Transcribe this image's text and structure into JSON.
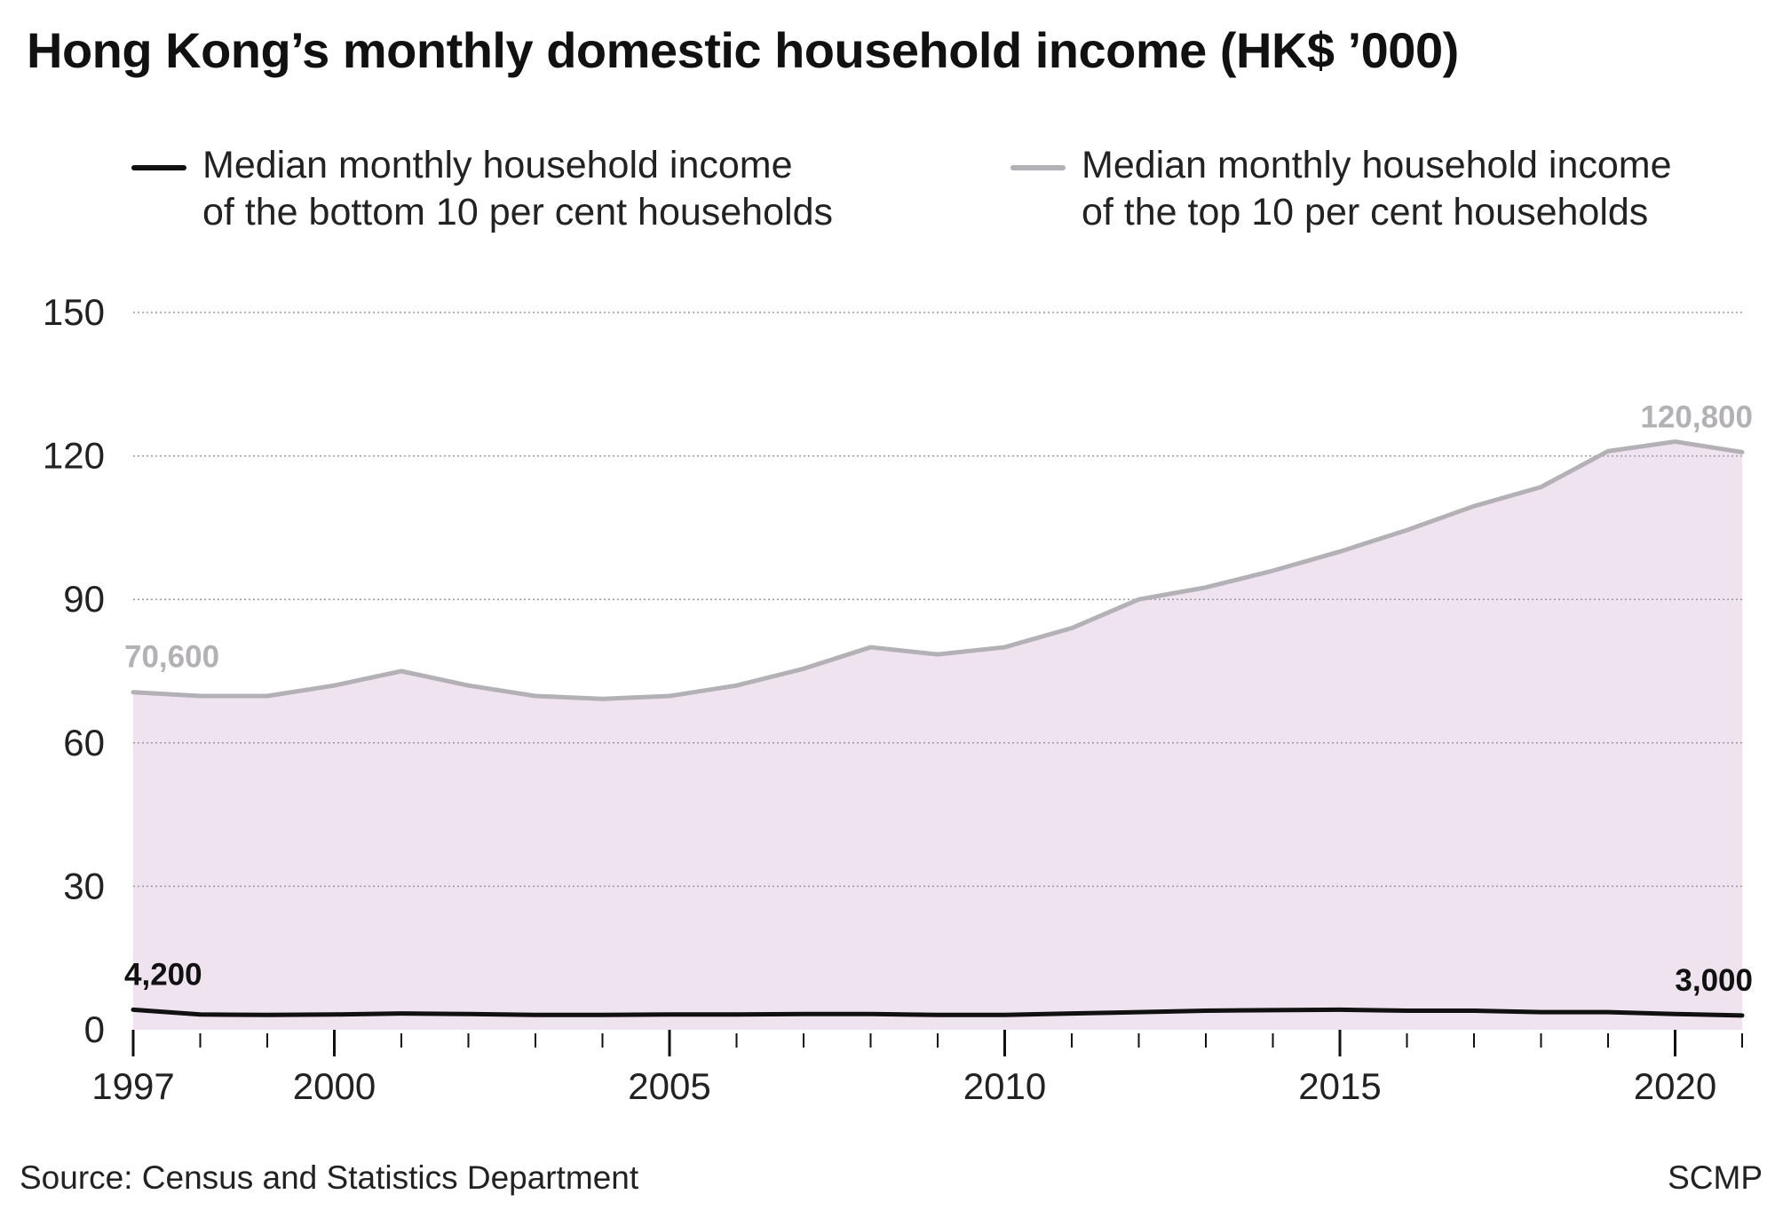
{
  "chart_data": {
    "type": "area",
    "title": "Hong Kong’s monthly domestic household income (HK$ ’000)",
    "x": [
      1997,
      1998,
      1999,
      2000,
      2001,
      2002,
      2003,
      2004,
      2005,
      2006,
      2007,
      2008,
      2009,
      2010,
      2011,
      2012,
      2013,
      2014,
      2015,
      2016,
      2017,
      2018,
      2019,
      2020,
      2021
    ],
    "series": [
      {
        "name": "Median monthly household income of the bottom 10 per cent households",
        "legend_lines": [
          "Median monthly household income",
          "of the bottom 10 per cent households"
        ],
        "color": "#111111",
        "values": [
          4.2,
          3.2,
          3.1,
          3.2,
          3.4,
          3.3,
          3.1,
          3.1,
          3.2,
          3.2,
          3.3,
          3.3,
          3.1,
          3.1,
          3.4,
          3.7,
          4.0,
          4.1,
          4.2,
          4.0,
          4.0,
          3.7,
          3.7,
          3.3,
          3.0
        ]
      },
      {
        "name": "Median monthly household income of the top 10 per cent households",
        "legend_lines": [
          "Median monthly household income",
          "of the top 10 per cent households"
        ],
        "color": "#b3b1b6",
        "values": [
          70.6,
          69.8,
          69.8,
          72,
          75,
          72,
          69.8,
          69.2,
          69.8,
          72,
          75.5,
          80,
          78.5,
          80,
          84,
          90,
          92.5,
          96,
          100,
          104.5,
          109.5,
          113.5,
          121,
          123,
          120.8
        ]
      }
    ],
    "area_fill": "#efe3ef",
    "ylim": [
      0,
      150
    ],
    "yticks": [
      0,
      30,
      60,
      90,
      120,
      150
    ],
    "xticks_labeled": [
      1997,
      2000,
      2005,
      2010,
      2015,
      2020
    ],
    "grid": true,
    "legend_position": "top",
    "annotations": [
      {
        "text": "70,600",
        "x": 1997,
        "series": 1,
        "anchor": "start",
        "color": "#b3b1b6"
      },
      {
        "text": "120,800",
        "x": 2021,
        "series": 1,
        "anchor": "end",
        "color": "#b3b1b6"
      },
      {
        "text": "4,200",
        "x": 1997,
        "series": 0,
        "anchor": "start",
        "color": "#111111"
      },
      {
        "text": "3,000",
        "x": 2021,
        "series": 0,
        "anchor": "end",
        "color": "#111111"
      }
    ]
  },
  "footer": {
    "source": "Source: Census and Statistics Department",
    "brand": "SCMP"
  }
}
